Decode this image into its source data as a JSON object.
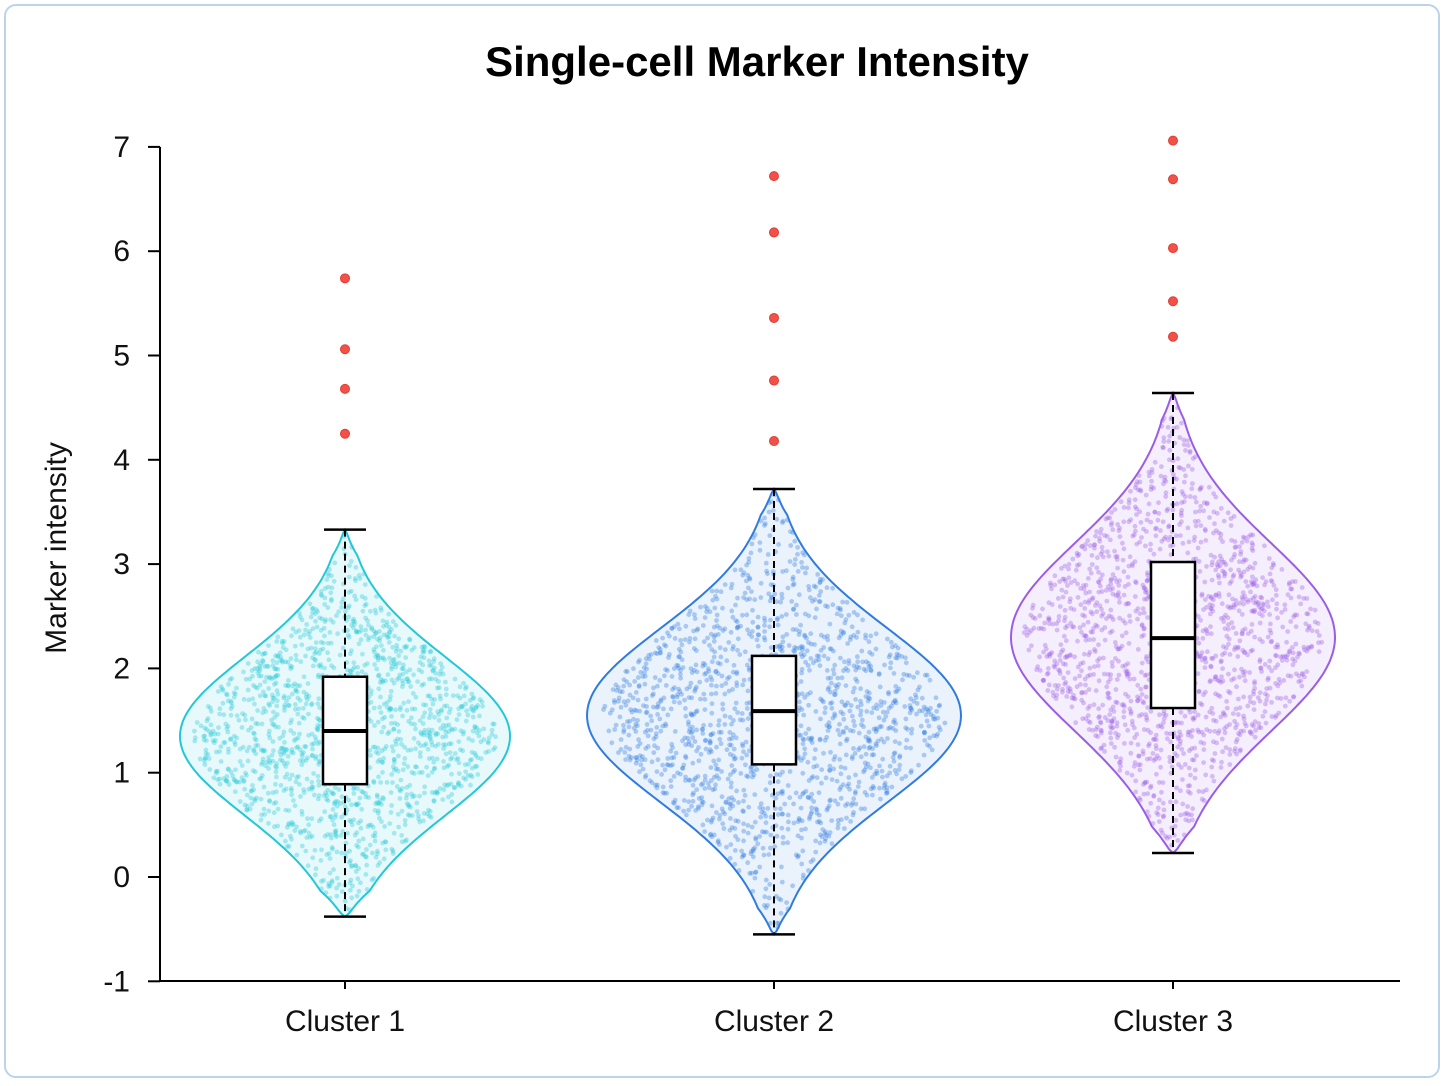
{
  "chart_data": {
    "type": "violin",
    "title": "Single-cell Marker Intensity",
    "xlabel": "",
    "ylabel": "Marker intensity",
    "ylim": [
      -1,
      7
    ],
    "yticks": [
      -1,
      0,
      1,
      2,
      3,
      4,
      5,
      6,
      7
    ],
    "grid": false,
    "categories": [
      "Cluster 1",
      "Cluster 2",
      "Cluster 3"
    ],
    "series": [
      {
        "category": "Cluster 1",
        "color": "#22c8d8",
        "density_center": 1.35,
        "density_range": [
          -0.38,
          3.33
        ],
        "box": {
          "whisker_low": -0.38,
          "q1": 0.89,
          "median": 1.4,
          "q3": 1.92,
          "whisker_high": 3.33
        },
        "outliers": [
          4.25,
          4.68,
          5.06,
          5.74
        ]
      },
      {
        "category": "Cluster 2",
        "color": "#2f7be0",
        "density_center": 1.55,
        "density_range": [
          -0.55,
          3.72
        ],
        "box": {
          "whisker_low": -0.55,
          "q1": 1.08,
          "median": 1.59,
          "q3": 2.12,
          "whisker_high": 3.72
        },
        "outliers": [
          4.18,
          4.76,
          5.36,
          6.18,
          6.72
        ]
      },
      {
        "category": "Cluster 3",
        "color": "#9b5de5",
        "density_center": 2.3,
        "density_range": [
          0.23,
          4.64
        ],
        "box": {
          "whisker_low": 0.23,
          "q1": 1.62,
          "median": 2.29,
          "q3": 3.02,
          "whisker_high": 4.64
        },
        "outliers": [
          5.18,
          5.52,
          6.03,
          6.69,
          7.06
        ]
      }
    ],
    "outlier_color": "#f0524a"
  }
}
